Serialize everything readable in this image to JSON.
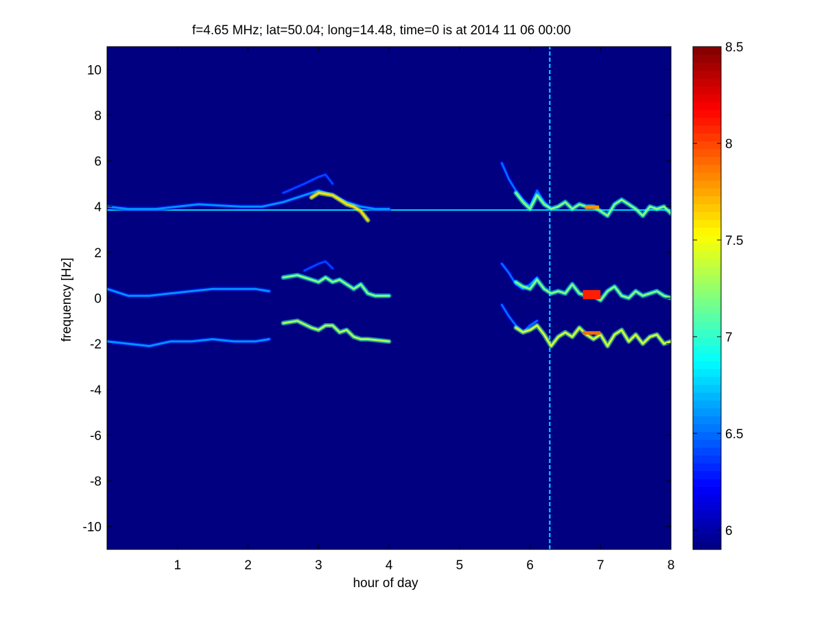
{
  "chart_data": {
    "type": "heatmap",
    "title": "f=4.65 MHz;  lat=50.04; long=14.48, time=0 is at 2014 11 06 00:00",
    "xlabel": "hour of day",
    "ylabel": "frequency [Hz]",
    "xlim": [
      0,
      8
    ],
    "ylim": [
      -11,
      11
    ],
    "xticks": [
      "1",
      "2",
      "3",
      "4",
      "5",
      "6",
      "7",
      "8"
    ],
    "yticks": [
      "-10",
      "-8",
      "-6",
      "-4",
      "-2",
      "0",
      "2",
      "4",
      "6",
      "8",
      "10"
    ],
    "colorbar": {
      "colormap": "jet",
      "range": [
        5.9,
        8.5
      ],
      "ticks": [
        "6",
        "6.5",
        "7",
        "7.5",
        "8",
        "8.5"
      ]
    },
    "background_value": 5.9,
    "features": [
      {
        "kind": "constant-line",
        "y": 3.85,
        "x": [
          0,
          8
        ],
        "value": 6.8
      },
      {
        "kind": "vertical-line",
        "x": 6.28,
        "y": [
          -11,
          11
        ],
        "value": 6.7
      },
      {
        "kind": "trace",
        "value": 6.6,
        "points": [
          [
            0.0,
            4.0
          ],
          [
            0.3,
            3.9
          ],
          [
            0.7,
            3.9
          ],
          [
            1.0,
            4.0
          ],
          [
            1.3,
            4.1
          ],
          [
            1.6,
            4.05
          ],
          [
            1.9,
            4.0
          ],
          [
            2.2,
            4.0
          ],
          [
            2.5,
            4.2
          ],
          [
            2.8,
            4.5
          ],
          [
            3.0,
            4.7
          ],
          [
            3.2,
            4.5
          ],
          [
            3.4,
            4.2
          ],
          [
            3.6,
            4.0
          ],
          [
            3.8,
            3.9
          ],
          [
            4.0,
            3.9
          ]
        ]
      },
      {
        "kind": "trace",
        "value": 6.4,
        "points": [
          [
            2.5,
            4.6
          ],
          [
            2.8,
            5.0
          ],
          [
            3.0,
            5.3
          ],
          [
            3.1,
            5.4
          ],
          [
            3.2,
            5.0
          ]
        ]
      },
      {
        "kind": "trace",
        "value": 7.6,
        "points": [
          [
            2.9,
            4.4
          ],
          [
            3.0,
            4.6
          ],
          [
            3.2,
            4.5
          ],
          [
            3.3,
            4.3
          ],
          [
            3.4,
            4.1
          ],
          [
            3.5,
            4.0
          ],
          [
            3.6,
            3.8
          ],
          [
            3.7,
            3.4
          ]
        ]
      },
      {
        "kind": "trace",
        "value": 6.6,
        "points": [
          [
            0.0,
            0.4
          ],
          [
            0.3,
            0.1
          ],
          [
            0.6,
            0.1
          ],
          [
            0.9,
            0.2
          ],
          [
            1.2,
            0.3
          ],
          [
            1.5,
            0.4
          ],
          [
            1.8,
            0.4
          ],
          [
            2.1,
            0.4
          ],
          [
            2.3,
            0.3
          ]
        ]
      },
      {
        "kind": "trace",
        "value": 7.2,
        "points": [
          [
            2.5,
            0.9
          ],
          [
            2.7,
            1.0
          ],
          [
            2.9,
            0.8
          ],
          [
            3.0,
            0.7
          ],
          [
            3.1,
            0.9
          ],
          [
            3.2,
            0.7
          ],
          [
            3.3,
            0.8
          ],
          [
            3.4,
            0.6
          ],
          [
            3.5,
            0.4
          ],
          [
            3.6,
            0.6
          ],
          [
            3.7,
            0.2
          ],
          [
            3.8,
            0.1
          ],
          [
            4.0,
            0.1
          ]
        ]
      },
      {
        "kind": "trace",
        "value": 6.4,
        "points": [
          [
            2.8,
            1.2
          ],
          [
            3.0,
            1.5
          ],
          [
            3.1,
            1.6
          ],
          [
            3.2,
            1.3
          ]
        ]
      },
      {
        "kind": "trace",
        "value": 6.6,
        "points": [
          [
            0.0,
            -1.9
          ],
          [
            0.3,
            -2.0
          ],
          [
            0.6,
            -2.1
          ],
          [
            0.9,
            -1.9
          ],
          [
            1.2,
            -1.9
          ],
          [
            1.5,
            -1.8
          ],
          [
            1.8,
            -1.9
          ],
          [
            2.1,
            -1.9
          ],
          [
            2.3,
            -1.8
          ]
        ]
      },
      {
        "kind": "trace",
        "value": 7.3,
        "points": [
          [
            2.5,
            -1.1
          ],
          [
            2.7,
            -1.0
          ],
          [
            2.9,
            -1.3
          ],
          [
            3.0,
            -1.4
          ],
          [
            3.1,
            -1.2
          ],
          [
            3.2,
            -1.2
          ],
          [
            3.3,
            -1.5
          ],
          [
            3.4,
            -1.4
          ],
          [
            3.5,
            -1.7
          ],
          [
            3.6,
            -1.8
          ],
          [
            3.7,
            -1.8
          ],
          [
            4.0,
            -1.9
          ]
        ]
      },
      {
        "kind": "trace",
        "value": 6.5,
        "points": [
          [
            5.6,
            5.9
          ],
          [
            5.7,
            5.2
          ],
          [
            5.8,
            4.7
          ],
          [
            5.9,
            4.3
          ],
          [
            6.0,
            4.0
          ],
          [
            6.1,
            4.7
          ],
          [
            6.2,
            4.2
          ],
          [
            6.3,
            3.9
          ]
        ]
      },
      {
        "kind": "trace",
        "value": 7.2,
        "points": [
          [
            5.8,
            4.6
          ],
          [
            5.9,
            4.2
          ],
          [
            6.0,
            3.9
          ],
          [
            6.1,
            4.5
          ],
          [
            6.2,
            4.1
          ],
          [
            6.3,
            3.9
          ],
          [
            6.4,
            4.0
          ],
          [
            6.5,
            4.2
          ],
          [
            6.6,
            3.9
          ],
          [
            6.7,
            4.1
          ],
          [
            6.8,
            4.0
          ],
          [
            6.9,
            4.0
          ],
          [
            7.0,
            3.8
          ],
          [
            7.1,
            3.6
          ],
          [
            7.2,
            4.1
          ],
          [
            7.3,
            4.3
          ],
          [
            7.4,
            4.1
          ],
          [
            7.5,
            3.9
          ],
          [
            7.6,
            3.6
          ],
          [
            7.7,
            4.0
          ],
          [
            7.8,
            3.9
          ],
          [
            7.9,
            4.0
          ],
          [
            8.0,
            3.7
          ]
        ]
      },
      {
        "kind": "trace",
        "value": 6.5,
        "points": [
          [
            5.6,
            1.5
          ],
          [
            5.7,
            1.1
          ],
          [
            5.8,
            0.6
          ],
          [
            5.9,
            0.4
          ],
          [
            6.0,
            0.6
          ],
          [
            6.1,
            0.9
          ]
        ]
      },
      {
        "kind": "trace",
        "value": 7.2,
        "points": [
          [
            5.8,
            0.7
          ],
          [
            5.9,
            0.5
          ],
          [
            6.0,
            0.4
          ],
          [
            6.1,
            0.8
          ],
          [
            6.2,
            0.4
          ],
          [
            6.3,
            0.2
          ],
          [
            6.4,
            0.3
          ],
          [
            6.5,
            0.2
          ],
          [
            6.6,
            0.6
          ],
          [
            6.7,
            0.2
          ],
          [
            6.8,
            0.1
          ],
          [
            6.9,
            0.1
          ],
          [
            7.0,
            -0.1
          ],
          [
            7.1,
            0.3
          ],
          [
            7.2,
            0.5
          ],
          [
            7.3,
            0.1
          ],
          [
            7.4,
            0.0
          ],
          [
            7.5,
            0.3
          ],
          [
            7.6,
            0.1
          ],
          [
            7.7,
            0.2
          ],
          [
            7.8,
            0.3
          ],
          [
            7.9,
            0.1
          ],
          [
            8.0,
            0.0
          ]
        ]
      },
      {
        "kind": "trace",
        "value": 6.5,
        "points": [
          [
            5.6,
            -0.3
          ],
          [
            5.7,
            -0.8
          ],
          [
            5.8,
            -1.2
          ],
          [
            5.9,
            -1.5
          ],
          [
            6.0,
            -1.2
          ],
          [
            6.1,
            -1.0
          ]
        ]
      },
      {
        "kind": "trace",
        "value": 7.4,
        "points": [
          [
            5.8,
            -1.3
          ],
          [
            5.9,
            -1.5
          ],
          [
            6.0,
            -1.4
          ],
          [
            6.1,
            -1.2
          ],
          [
            6.2,
            -1.6
          ],
          [
            6.3,
            -2.1
          ],
          [
            6.4,
            -1.7
          ],
          [
            6.5,
            -1.5
          ],
          [
            6.6,
            -1.7
          ],
          [
            6.7,
            -1.3
          ],
          [
            6.8,
            -1.6
          ],
          [
            6.9,
            -1.8
          ],
          [
            7.0,
            -1.6
          ],
          [
            7.1,
            -2.1
          ],
          [
            7.2,
            -1.6
          ],
          [
            7.3,
            -1.4
          ],
          [
            7.4,
            -1.9
          ],
          [
            7.5,
            -1.6
          ],
          [
            7.6,
            -2.0
          ],
          [
            7.7,
            -1.7
          ],
          [
            7.8,
            -1.6
          ],
          [
            7.9,
            -2.0
          ],
          [
            8.0,
            -1.9
          ]
        ]
      },
      {
        "kind": "blob",
        "x": [
          6.75,
          7.0
        ],
        "y": [
          -0.05,
          0.35
        ],
        "value": 8.1
      },
      {
        "kind": "blob",
        "x": [
          6.75,
          7.0
        ],
        "y": [
          -1.6,
          -1.45
        ],
        "value": 7.9
      },
      {
        "kind": "blob",
        "x": [
          6.78,
          6.98
        ],
        "y": [
          3.9,
          4.05
        ],
        "value": 7.8
      }
    ]
  }
}
